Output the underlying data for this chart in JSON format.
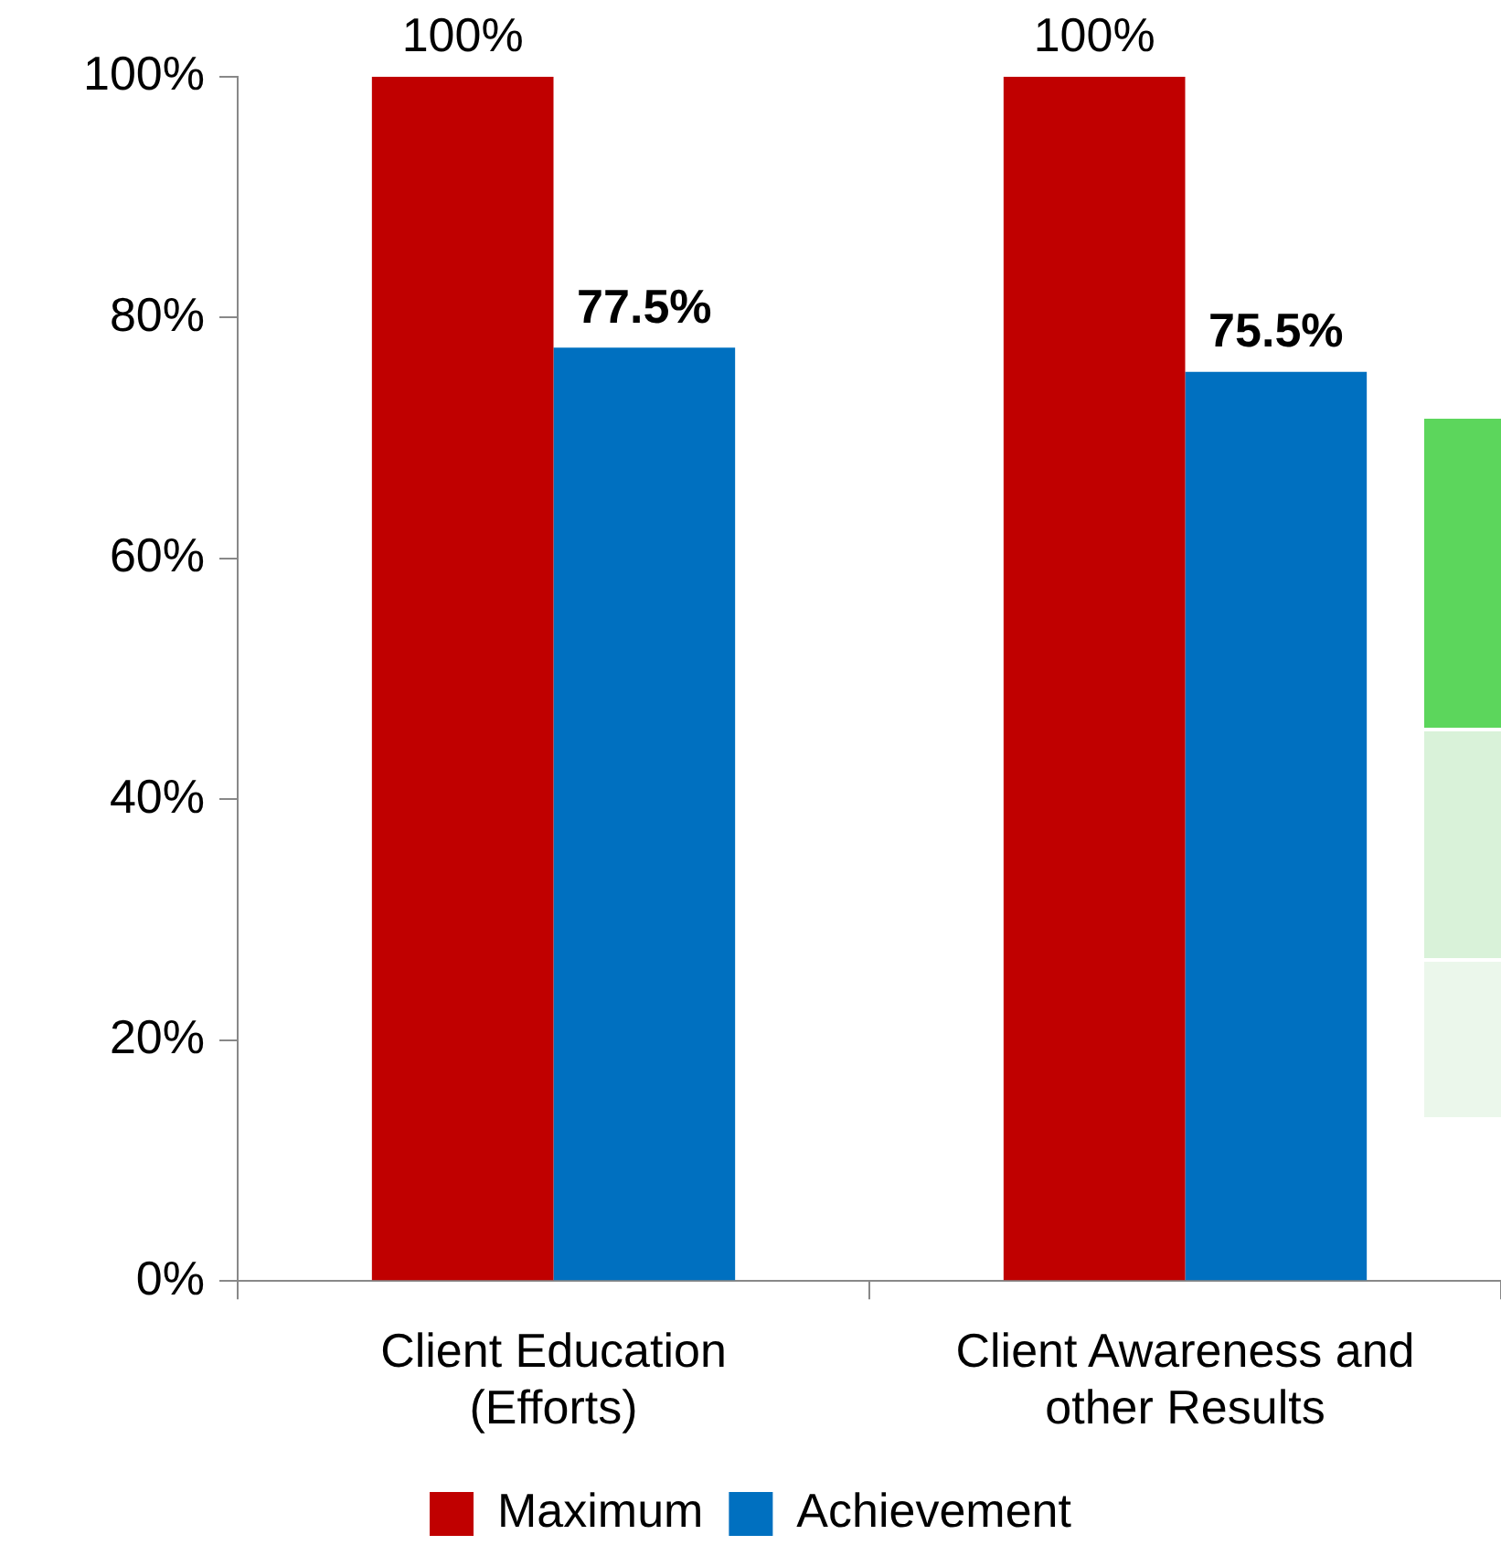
{
  "chart_data": {
    "type": "bar",
    "categories": [
      "Client Education (Efforts)",
      "Client Awareness and other Results"
    ],
    "series": [
      {
        "name": "Maximum",
        "color": "#c00000",
        "values": [
          100,
          100
        ],
        "value_labels": [
          "100%",
          "100%"
        ]
      },
      {
        "name": "Achievement",
        "color": "#0070c0",
        "values": [
          77.5,
          75.5
        ],
        "value_labels": [
          "77.5%",
          "75.5%"
        ]
      }
    ],
    "ylim": [
      0,
      100
    ],
    "yticks": [
      {
        "value": 0,
        "label": "0%"
      },
      {
        "value": 20,
        "label": "20%"
      },
      {
        "value": 40,
        "label": "40%"
      },
      {
        "value": 60,
        "label": "60%"
      },
      {
        "value": 80,
        "label": "80%"
      },
      {
        "value": 100,
        "label": "100%"
      }
    ],
    "grid": false,
    "legend": "bottom"
  }
}
